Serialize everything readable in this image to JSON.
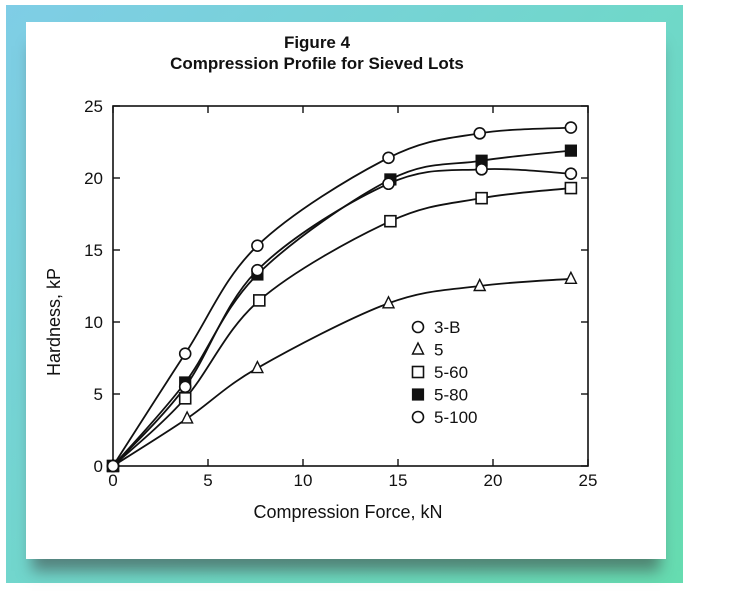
{
  "chart_data": {
    "type": "line",
    "title": "Figure 4",
    "subtitle": "Compression Profile for Sieved Lots",
    "xlabel": "Compression Force, kN",
    "ylabel": "Hardness, kP",
    "xlim": [
      0,
      25
    ],
    "ylim": [
      0,
      25
    ],
    "xticks": [
      0,
      5,
      10,
      15,
      20,
      25
    ],
    "yticks": [
      0,
      5,
      10,
      15,
      20,
      25
    ],
    "xtick_labels": [
      "0",
      "5",
      "10",
      "15",
      "20",
      "25"
    ],
    "ytick_labels": [
      "0",
      "5",
      "10",
      "15",
      "20",
      "25"
    ],
    "grid": false,
    "legend_position": "center-right",
    "series": [
      {
        "name": "3-B",
        "marker": "open-circle",
        "x": [
          0,
          3.8,
          7.6,
          14.5,
          19.3,
          24.1
        ],
        "y": [
          0,
          7.8,
          15.3,
          21.4,
          23.1,
          23.5
        ]
      },
      {
        "name": "5",
        "marker": "open-triangle",
        "x": [
          0,
          3.9,
          7.6,
          14.5,
          19.3,
          24.1
        ],
        "y": [
          0,
          3.3,
          6.8,
          11.3,
          12.5,
          13.0
        ]
      },
      {
        "name": "5-60",
        "marker": "open-square",
        "x": [
          0,
          3.8,
          7.7,
          14.6,
          19.4,
          24.1
        ],
        "y": [
          0,
          4.7,
          11.5,
          17.0,
          18.6,
          19.3
        ]
      },
      {
        "name": "5-80",
        "marker": "filled-square",
        "x": [
          0,
          3.8,
          7.6,
          14.6,
          19.4,
          24.1
        ],
        "y": [
          0,
          5.8,
          13.3,
          19.9,
          21.2,
          21.9
        ]
      },
      {
        "name": "5-100",
        "marker": "open-circle",
        "x": [
          0,
          3.8,
          7.6,
          14.5,
          19.4,
          24.1
        ],
        "y": [
          0,
          5.5,
          13.6,
          19.6,
          20.6,
          20.3
        ]
      }
    ]
  }
}
